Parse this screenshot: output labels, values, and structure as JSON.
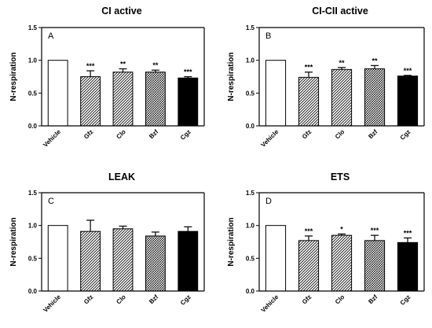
{
  "chart_data": [
    {
      "type": "bar",
      "panel_label": "A",
      "title": "CI active",
      "ylabel": "N-respiration",
      "ylim": [
        0,
        1.5
      ],
      "yticks": [
        "0.0",
        "0.5",
        "1.0",
        "1.5"
      ],
      "categories": [
        "Vehicle",
        "Gfz",
        "Clo",
        "Bzf",
        "Cgz"
      ],
      "values": [
        1.0,
        0.75,
        0.82,
        0.82,
        0.73
      ],
      "errors": [
        0,
        0.09,
        0.05,
        0.03,
        0.02
      ],
      "significance": [
        "",
        "***",
        "**",
        "**",
        "***"
      ],
      "fills": [
        "white",
        "hatch-diagonal",
        "hatch-diagonal",
        "hatch-crosshatch",
        "black"
      ]
    },
    {
      "type": "bar",
      "panel_label": "B",
      "title": "CI-CII active",
      "ylabel": "N-respiration",
      "ylim": [
        0,
        1.5
      ],
      "yticks": [
        "0.0",
        "0.5",
        "1.0",
        "1.5"
      ],
      "categories": [
        "Vehicle",
        "Gfz",
        "Clo",
        "Bzf",
        "Cgz"
      ],
      "values": [
        1.0,
        0.74,
        0.86,
        0.87,
        0.76
      ],
      "errors": [
        0,
        0.08,
        0.03,
        0.05,
        0.01
      ],
      "significance": [
        "",
        "***",
        "**",
        "**",
        "***"
      ],
      "fills": [
        "white",
        "hatch-diagonal",
        "hatch-diagonal",
        "hatch-crosshatch",
        "black"
      ]
    },
    {
      "type": "bar",
      "panel_label": "C",
      "title": "LEAK",
      "ylabel": "N-respiration",
      "ylim": [
        0,
        1.5
      ],
      "yticks": [
        "0.0",
        "0.5",
        "1.0",
        "1.5"
      ],
      "categories": [
        "Vehicle",
        "Gfz",
        "Clo",
        "Bzf",
        "Cgz"
      ],
      "values": [
        1.0,
        0.91,
        0.95,
        0.84,
        0.91
      ],
      "errors": [
        0,
        0.17,
        0.04,
        0.06,
        0.07
      ],
      "significance": [
        "",
        "",
        "",
        "",
        ""
      ],
      "fills": [
        "white",
        "hatch-diagonal",
        "hatch-diagonal",
        "hatch-crosshatch",
        "black"
      ]
    },
    {
      "type": "bar",
      "panel_label": "D",
      "title": "ETS",
      "ylabel": "N-respiration",
      "ylim": [
        0,
        1.5
      ],
      "yticks": [
        "0.0",
        "0.5",
        "1.0",
        "1.5"
      ],
      "categories": [
        "Vehicle",
        "Gfz",
        "Clo",
        "Bzf",
        "Cgz"
      ],
      "values": [
        1.0,
        0.77,
        0.85,
        0.77,
        0.74
      ],
      "errors": [
        0,
        0.07,
        0.02,
        0.08,
        0.07
      ],
      "significance": [
        "",
        "***",
        "*",
        "***",
        "***"
      ],
      "fills": [
        "white",
        "hatch-diagonal",
        "hatch-diagonal",
        "hatch-crosshatch",
        "black"
      ]
    }
  ]
}
